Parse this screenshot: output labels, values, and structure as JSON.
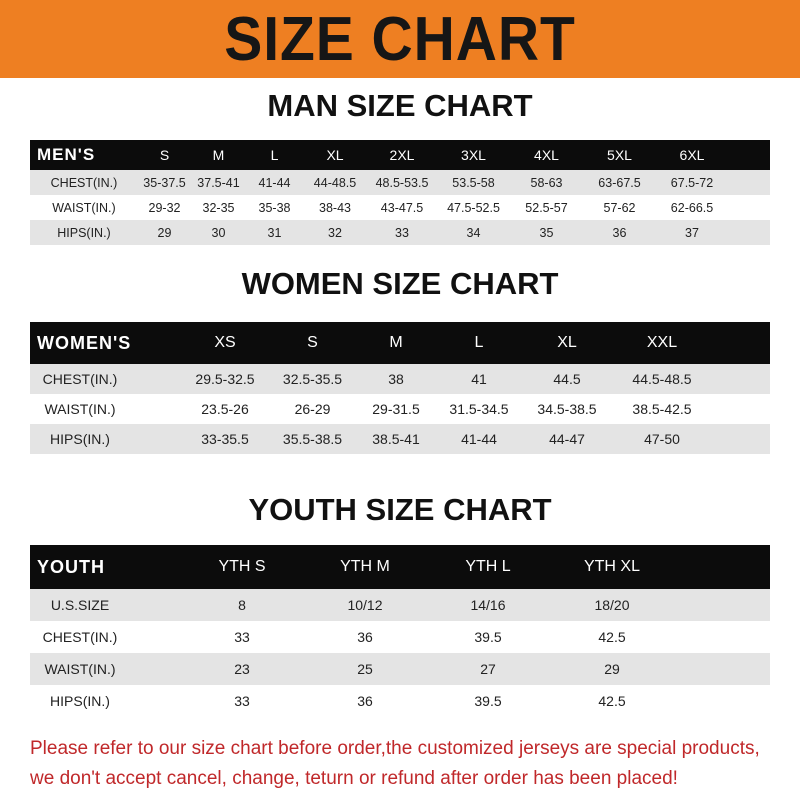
{
  "title": "SIZE CHART",
  "colors": {
    "banner": "#ee7f22",
    "header_row": "#0c0c0c",
    "stripe": "#e4e4e4",
    "note": "#c0282a"
  },
  "men": {
    "heading": "MAN SIZE CHART",
    "corner": "MEN'S",
    "sizes": [
      "S",
      "M",
      "L",
      "XL",
      "2XL",
      "3XL",
      "4XL",
      "5XL",
      "6XL"
    ],
    "rows": [
      {
        "label": "CHEST(IN.)",
        "values": [
          "35-37.5",
          "37.5-41",
          "41-44",
          "44-48.5",
          "48.5-53.5",
          "53.5-58",
          "58-63",
          "63-67.5",
          "67.5-72"
        ]
      },
      {
        "label": "WAIST(IN.)",
        "values": [
          "29-32",
          "32-35",
          "35-38",
          "38-43",
          "43-47.5",
          "47.5-52.5",
          "52.5-57",
          "57-62",
          "62-66.5"
        ]
      },
      {
        "label": "HIPS(IN.)",
        "values": [
          "29",
          "30",
          "31",
          "32",
          "33",
          "34",
          "35",
          "36",
          "37"
        ]
      }
    ]
  },
  "women": {
    "heading": "WOMEN SIZE CHART",
    "corner": "WOMEN'S",
    "sizes": [
      "XS",
      "S",
      "M",
      "L",
      "XL",
      "XXL"
    ],
    "rows": [
      {
        "label": "CHEST(IN.)",
        "values": [
          "29.5-32.5",
          "32.5-35.5",
          "38",
          "41",
          "44.5",
          "44.5-48.5"
        ]
      },
      {
        "label": "WAIST(IN.)",
        "values": [
          "23.5-26",
          "26-29",
          "29-31.5",
          "31.5-34.5",
          "34.5-38.5",
          "38.5-42.5"
        ]
      },
      {
        "label": "HIPS(IN.)",
        "values": [
          "33-35.5",
          "35.5-38.5",
          "38.5-41",
          "41-44",
          "44-47",
          "47-50"
        ]
      }
    ]
  },
  "youth": {
    "heading": "YOUTH SIZE CHART",
    "corner": "YOUTH",
    "sizes": [
      "YTH S",
      "YTH M",
      "YTH L",
      "YTH XL"
    ],
    "rows": [
      {
        "label": "U.S.SIZE",
        "values": [
          "8",
          "10/12",
          "14/16",
          "18/20"
        ]
      },
      {
        "label": "CHEST(IN.)",
        "values": [
          "33",
          "36",
          "39.5",
          "42.5"
        ]
      },
      {
        "label": "WAIST(IN.)",
        "values": [
          "23",
          "25",
          "27",
          "29"
        ]
      },
      {
        "label": "HIPS(IN.)",
        "values": [
          "33",
          "36",
          "39.5",
          "42.5"
        ]
      }
    ]
  },
  "note": [
    "Please refer to our size chart before order,the customized jerseys are special products,",
    "we don't accept cancel, change, teturn or refund after order has been placed!"
  ]
}
